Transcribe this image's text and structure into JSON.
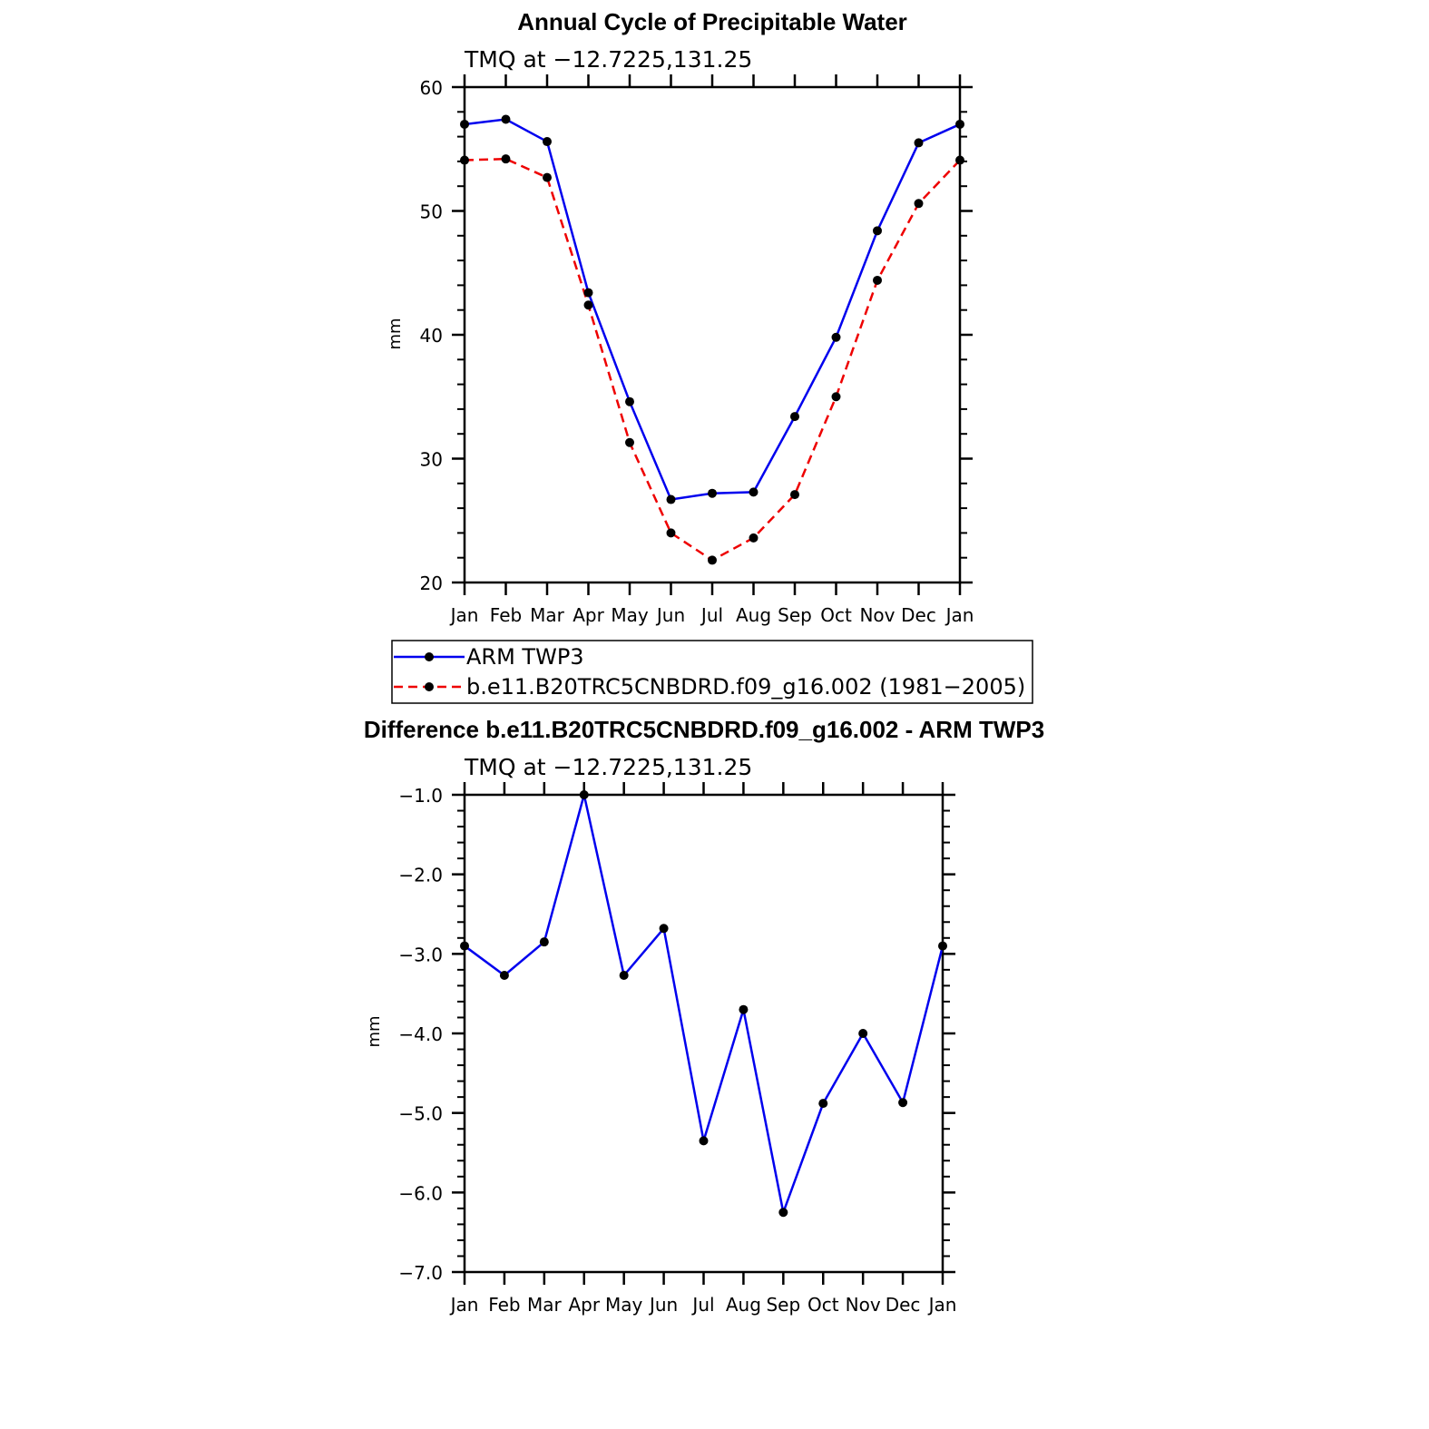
{
  "chart_data": [
    {
      "type": "line",
      "title": "Annual Cycle of Precipitable Water",
      "subtitle": "TMQ  at  −12.7225,131.25",
      "ylabel": "mm",
      "xlabel": "",
      "categories": [
        "Jan",
        "Feb",
        "Mar",
        "Apr",
        "May",
        "Jun",
        "Jul",
        "Aug",
        "Sep",
        "Oct",
        "Nov",
        "Dec",
        "Jan"
      ],
      "ylim": [
        20,
        60
      ],
      "yticks": [
        20,
        30,
        40,
        50,
        60
      ],
      "ytick_labels": [
        "20",
        "30",
        "40",
        "50",
        "60"
      ],
      "grid": false,
      "legend_position": "below",
      "series": [
        {
          "name": "ARM  TWP3",
          "color": "#0000ee",
          "dash": "solid",
          "values": [
            57.0,
            57.4,
            55.6,
            43.4,
            34.6,
            26.7,
            27.2,
            27.3,
            33.4,
            39.8,
            48.4,
            55.5,
            57.0
          ]
        },
        {
          "name": "b.e11.B20TRC5CNBDRD.f09_g16.002  (1981−2005)",
          "color": "#ee0000",
          "dash": "dashed",
          "values": [
            54.1,
            54.2,
            52.7,
            42.4,
            31.3,
            24.0,
            21.8,
            23.6,
            27.1,
            35.0,
            44.4,
            50.6,
            54.1
          ]
        }
      ]
    },
    {
      "type": "line",
      "title": "Difference b.e11.B20TRC5CNBDRD.f09_g16.002 - ARM TWP3",
      "subtitle": "TMQ  at  −12.7225,131.25",
      "ylabel": "mm",
      "xlabel": "",
      "categories": [
        "Jan",
        "Feb",
        "Mar",
        "Apr",
        "May",
        "Jun",
        "Jul",
        "Aug",
        "Sep",
        "Oct",
        "Nov",
        "Dec",
        "Jan"
      ],
      "ylim": [
        -7.0,
        -1.0
      ],
      "yticks": [
        -7,
        -6,
        -5,
        -4,
        -3,
        -2,
        -1
      ],
      "ytick_labels": [
        "−7.0",
        "−6.0",
        "−5.0",
        "−4.0",
        "−3.0",
        "−2.0",
        "−1.0"
      ],
      "grid": false,
      "series": [
        {
          "color": "#0000ee",
          "dash": "solid",
          "values": [
            -2.9,
            -3.27,
            -2.85,
            -1.0,
            -3.27,
            -2.68,
            -5.35,
            -3.7,
            -6.25,
            -4.88,
            -4.0,
            -4.87,
            -2.9
          ]
        }
      ]
    }
  ]
}
